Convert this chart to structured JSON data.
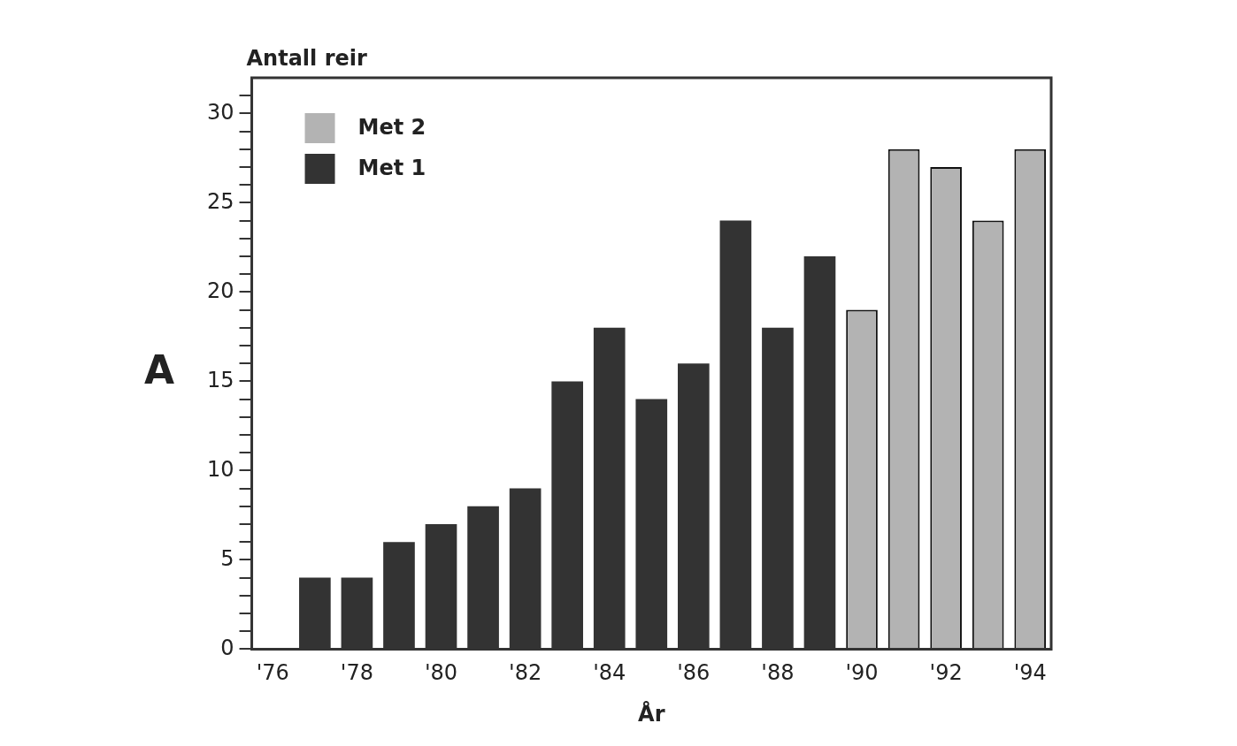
{
  "chart_data": {
    "type": "bar",
    "ylabel": "Antall reir",
    "xlabel": "År",
    "annotations": [
      "A"
    ],
    "categories": [
      "'76",
      null,
      "'78",
      null,
      "'80",
      null,
      "'82",
      null,
      "'84",
      null,
      "'86",
      null,
      "'88",
      null,
      "'90",
      null,
      "'92",
      null,
      "'94"
    ],
    "series": [
      {
        "name": "Met 2",
        "color": "#b3b3b3",
        "values": [
          null,
          null,
          null,
          null,
          null,
          null,
          null,
          null,
          null,
          null,
          null,
          null,
          null,
          null,
          19,
          28,
          27,
          24,
          28
        ]
      },
      {
        "name": "Met 1",
        "color": "#333333",
        "values": [
          null,
          4,
          4,
          6,
          7,
          8,
          9,
          15,
          18,
          14,
          16,
          24,
          18,
          22,
          null,
          null,
          null,
          null,
          null
        ]
      }
    ],
    "ylim": [
      0,
      32
    ],
    "yticks": [
      0,
      {
        "value": 1,
        "label": null
      },
      {
        "value": 2,
        "label": null
      },
      {
        "value": 3,
        "label": null
      },
      {
        "value": 4,
        "label": null
      },
      5,
      {
        "value": 6,
        "label": null
      },
      {
        "value": 7,
        "label": null
      },
      {
        "value": 8,
        "label": null
      },
      {
        "value": 9,
        "label": null
      },
      10,
      {
        "value": 11,
        "label": null
      },
      {
        "value": 12,
        "label": null
      },
      {
        "value": 13,
        "label": null
      },
      {
        "value": 14,
        "label": null
      },
      15,
      {
        "value": 16,
        "label": null
      },
      {
        "value": 17,
        "label": null
      },
      {
        "value": 18,
        "label": null
      },
      {
        "value": 19,
        "label": null
      },
      20,
      {
        "value": 21,
        "label": null
      },
      {
        "value": 22,
        "label": null
      },
      {
        "value": 23,
        "label": null
      },
      {
        "value": 24,
        "label": null
      },
      25,
      {
        "value": 26,
        "label": null
      },
      {
        "value": 27,
        "label": null
      },
      {
        "value": 28,
        "label": null
      },
      {
        "value": 29,
        "label": null
      },
      30,
      {
        "value": 31,
        "label": null
      }
    ],
    "grid": false,
    "legend": "top left"
  }
}
